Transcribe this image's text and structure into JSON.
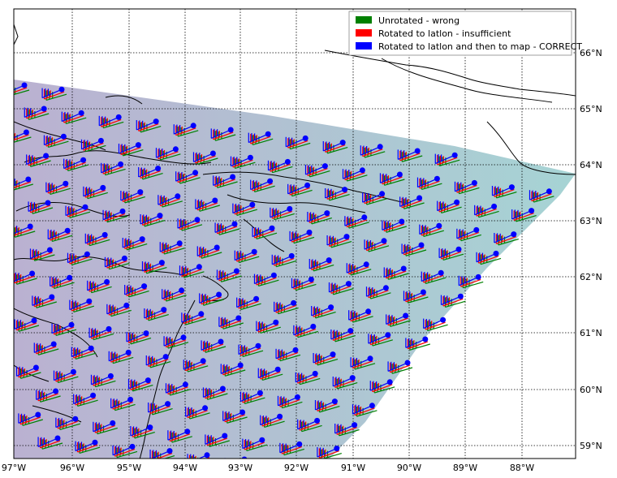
{
  "legend": {
    "items": [
      {
        "label": "Unrotated - wrong",
        "color": "#008000"
      },
      {
        "label": "Rotated to latlon - insufficient",
        "color": "#ff0000"
      },
      {
        "label": "Rotated to latlon and then to map - CORRECT",
        "color": "#0000ff"
      }
    ]
  },
  "axes": {
    "lon_ticks": [
      "97°W",
      "96°W",
      "95°W",
      "94°W",
      "93°W",
      "92°W",
      "91°W",
      "90°W",
      "89°W",
      "88°W"
    ],
    "lat_ticks": [
      "66°N",
      "65°N",
      "64°N",
      "63°N",
      "62°N",
      "61°N",
      "60°N",
      "59°N"
    ]
  },
  "colors": {
    "domain_left": "#b3a8cc",
    "domain_right": "#9ccfcf",
    "coast": "#000000",
    "grid": "#000000"
  }
}
